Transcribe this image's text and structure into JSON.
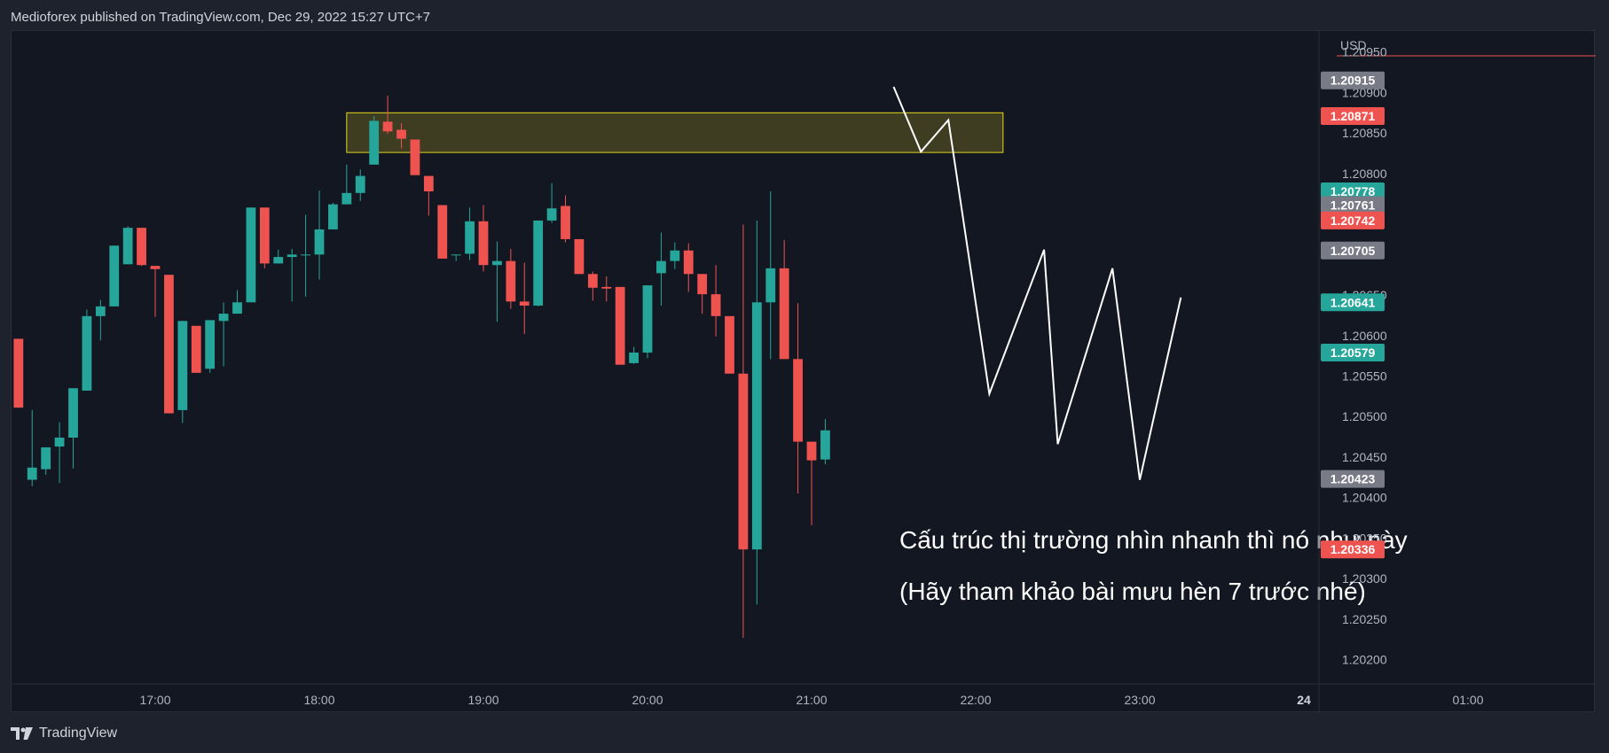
{
  "header": {
    "title": "Medioforex published on TradingView.com, Dec 29, 2022 15:27 UTC+7"
  },
  "footer": {
    "brand": "TradingView",
    "logo_icon": "tradingview-logo-icon"
  },
  "colors": {
    "bull": "#26a69a",
    "bear": "#ef5350",
    "background": "#131722",
    "gray_tag": "#787b86",
    "zone_fill": "#4d4a22",
    "zone_stroke": "#e5d81e",
    "path": "#ffffff",
    "text": "#d1d4dc"
  },
  "chart_data": {
    "type": "candlestick",
    "instrument_currency": "USD",
    "x_axis_labels": [
      "17:00",
      "18:00",
      "19:00",
      "20:00",
      "21:00",
      "22:00",
      "23:00",
      "24",
      "01:00"
    ],
    "bold_x_labels": [
      "24"
    ],
    "y_axis_labels": [
      "1.20950",
      "1.20900",
      "1.20850",
      "1.20800",
      "1.20650",
      "1.20600",
      "1.20550",
      "1.20500",
      "1.20450",
      "1.20400",
      "1.20350",
      "1.20300",
      "1.20250",
      "1.20200"
    ],
    "ylim": [
      1.2017,
      1.20965
    ],
    "candle_interval_minutes": 5,
    "first_candle_time": "16:10",
    "candles": [
      {
        "o": 1.20596,
        "h": 1.20596,
        "l": 1.20511,
        "c": 1.20511
      },
      {
        "o": 1.20422,
        "h": 1.20508,
        "l": 1.20414,
        "c": 1.20437
      },
      {
        "o": 1.20435,
        "h": 1.20459,
        "l": 1.20428,
        "c": 1.20462
      },
      {
        "o": 1.20463,
        "h": 1.20493,
        "l": 1.20418,
        "c": 1.20474
      },
      {
        "o": 1.20474,
        "h": 1.20533,
        "l": 1.20436,
        "c": 1.20535
      },
      {
        "o": 1.20532,
        "h": 1.20632,
        "l": 1.20532,
        "c": 1.20624
      },
      {
        "o": 1.20624,
        "h": 1.20644,
        "l": 1.20594,
        "c": 1.20636
      },
      {
        "o": 1.20636,
        "h": 1.20711,
        "l": 1.20636,
        "c": 1.20711
      },
      {
        "o": 1.20688,
        "h": 1.20735,
        "l": 1.20688,
        "c": 1.20733
      },
      {
        "o": 1.20733,
        "h": 1.20733,
        "l": 1.20686,
        "c": 1.20687
      },
      {
        "o": 1.20686,
        "h": 1.20686,
        "l": 1.20623,
        "c": 1.20682
      },
      {
        "o": 1.20675,
        "h": 1.20675,
        "l": 1.20504,
        "c": 1.20504
      },
      {
        "o": 1.20508,
        "h": 1.20618,
        "l": 1.20492,
        "c": 1.20618
      },
      {
        "o": 1.20612,
        "h": 1.20612,
        "l": 1.20554,
        "c": 1.20554
      },
      {
        "o": 1.20559,
        "h": 1.20619,
        "l": 1.20554,
        "c": 1.20619
      },
      {
        "o": 1.20618,
        "h": 1.20641,
        "l": 1.20562,
        "c": 1.20627
      },
      {
        "o": 1.20627,
        "h": 1.20656,
        "l": 1.20627,
        "c": 1.20641
      },
      {
        "o": 1.20641,
        "h": 1.20758,
        "l": 1.20641,
        "c": 1.20758
      },
      {
        "o": 1.20758,
        "h": 1.20758,
        "l": 1.20683,
        "c": 1.20689
      },
      {
        "o": 1.20689,
        "h": 1.20706,
        "l": 1.20692,
        "c": 1.20697
      },
      {
        "o": 1.20697,
        "h": 1.20707,
        "l": 1.20642,
        "c": 1.207
      },
      {
        "o": 1.207,
        "h": 1.20749,
        "l": 1.20648,
        "c": 1.207
      },
      {
        "o": 1.207,
        "h": 1.20779,
        "l": 1.20669,
        "c": 1.20731
      },
      {
        "o": 1.20731,
        "h": 1.20764,
        "l": 1.20731,
        "c": 1.20762
      },
      {
        "o": 1.20762,
        "h": 1.20811,
        "l": 1.20762,
        "c": 1.20776
      },
      {
        "o": 1.20776,
        "h": 1.20805,
        "l": 1.20766,
        "c": 1.20797
      },
      {
        "o": 1.20811,
        "h": 1.20871,
        "l": 1.20811,
        "c": 1.20865
      },
      {
        "o": 1.20864,
        "h": 1.20896,
        "l": 1.20849,
        "c": 1.20852
      },
      {
        "o": 1.20854,
        "h": 1.20862,
        "l": 1.20831,
        "c": 1.20843
      },
      {
        "o": 1.20842,
        "h": 1.20842,
        "l": 1.20798,
        "c": 1.20798
      },
      {
        "o": 1.20797,
        "h": 1.20797,
        "l": 1.20748,
        "c": 1.20778
      },
      {
        "o": 1.20761,
        "h": 1.20761,
        "l": 1.20695,
        "c": 1.20695
      },
      {
        "o": 1.207,
        "h": 1.207,
        "l": 1.20692,
        "c": 1.207
      },
      {
        "o": 1.20701,
        "h": 1.20758,
        "l": 1.20693,
        "c": 1.20741
      },
      {
        "o": 1.20741,
        "h": 1.20761,
        "l": 1.20679,
        "c": 1.20687
      },
      {
        "o": 1.20687,
        "h": 1.20716,
        "l": 1.20617,
        "c": 1.20692
      },
      {
        "o": 1.20692,
        "h": 1.20707,
        "l": 1.20633,
        "c": 1.20642
      },
      {
        "o": 1.20642,
        "h": 1.2069,
        "l": 1.20602,
        "c": 1.20637
      },
      {
        "o": 1.20637,
        "h": 1.20742,
        "l": 1.20636,
        "c": 1.20742
      },
      {
        "o": 1.20742,
        "h": 1.20788,
        "l": 1.20739,
        "c": 1.20757
      },
      {
        "o": 1.2076,
        "h": 1.20773,
        "l": 1.20715,
        "c": 1.20719
      },
      {
        "o": 1.20719,
        "h": 1.20719,
        "l": 1.20676,
        "c": 1.20676
      },
      {
        "o": 1.20676,
        "h": 1.20679,
        "l": 1.20643,
        "c": 1.20659
      },
      {
        "o": 1.2066,
        "h": 1.20673,
        "l": 1.20642,
        "c": 1.20658
      },
      {
        "o": 1.2066,
        "h": 1.2066,
        "l": 1.20564,
        "c": 1.20564
      },
      {
        "o": 1.20566,
        "h": 1.20586,
        "l": 1.20565,
        "c": 1.20579
      },
      {
        "o": 1.20579,
        "h": 1.20662,
        "l": 1.20572,
        "c": 1.20662
      },
      {
        "o": 1.20677,
        "h": 1.20727,
        "l": 1.20637,
        "c": 1.20692
      },
      {
        "o": 1.20692,
        "h": 1.20715,
        "l": 1.20682,
        "c": 1.20705
      },
      {
        "o": 1.20705,
        "h": 1.20714,
        "l": 1.20654,
        "c": 1.20676
      },
      {
        "o": 1.20676,
        "h": 1.20676,
        "l": 1.20627,
        "c": 1.20651
      },
      {
        "o": 1.20651,
        "h": 1.20687,
        "l": 1.20599,
        "c": 1.20624
      },
      {
        "o": 1.20624,
        "h": 1.20624,
        "l": 1.20553,
        "c": 1.20553
      },
      {
        "o": 1.20553,
        "h": 1.20737,
        "l": 1.20227,
        "c": 1.20336
      },
      {
        "o": 1.20336,
        "h": 1.20742,
        "l": 1.20268,
        "c": 1.20641
      },
      {
        "o": 1.20641,
        "h": 1.20778,
        "l": 1.20571,
        "c": 1.20683
      },
      {
        "o": 1.20683,
        "h": 1.20718,
        "l": 1.20571,
        "c": 1.20571
      },
      {
        "o": 1.20571,
        "h": 1.2064,
        "l": 1.20405,
        "c": 1.20469
      },
      {
        "o": 1.20469,
        "h": 1.20469,
        "l": 1.20366,
        "c": 1.20446
      },
      {
        "o": 1.20447,
        "h": 1.20497,
        "l": 1.20441,
        "c": 1.20483
      }
    ],
    "price_tags": [
      {
        "value": "1.20915",
        "kind": "gray"
      },
      {
        "value": "1.20871",
        "kind": "bear"
      },
      {
        "value": "1.20778",
        "kind": "bull"
      },
      {
        "value": "1.20761",
        "kind": "gray"
      },
      {
        "value": "1.20742",
        "kind": "bear"
      },
      {
        "value": "1.20705",
        "kind": "gray"
      },
      {
        "value": "1.20641",
        "kind": "bull"
      },
      {
        "value": "1.20579",
        "kind": "bull"
      },
      {
        "value": "1.20423",
        "kind": "gray"
      },
      {
        "value": "1.20336",
        "kind": "bear"
      }
    ],
    "supply_zone": {
      "price_top": 1.20875,
      "price_bottom": 1.20826,
      "time_start": "18:10",
      "time_end": "22:10"
    },
    "projection_path": [
      {
        "time": "21:30",
        "price": 1.20907
      },
      {
        "time": "21:40",
        "price": 1.20827
      },
      {
        "time": "21:50",
        "price": 1.20866
      },
      {
        "time": "22:05",
        "price": 1.20528
      },
      {
        "time": "22:25",
        "price": 1.20706
      },
      {
        "time": "22:30",
        "price": 1.20466
      },
      {
        "time": "22:50",
        "price": 1.20683
      },
      {
        "time": "23:00",
        "price": 1.20422
      },
      {
        "time": "23:15",
        "price": 1.20647
      }
    ],
    "annotations": [
      "Cấu trúc thị trường nhìn nhanh thì nó như này",
      "(Hãy tham khảo bài mưu hèn 7 trước nhé)"
    ]
  }
}
